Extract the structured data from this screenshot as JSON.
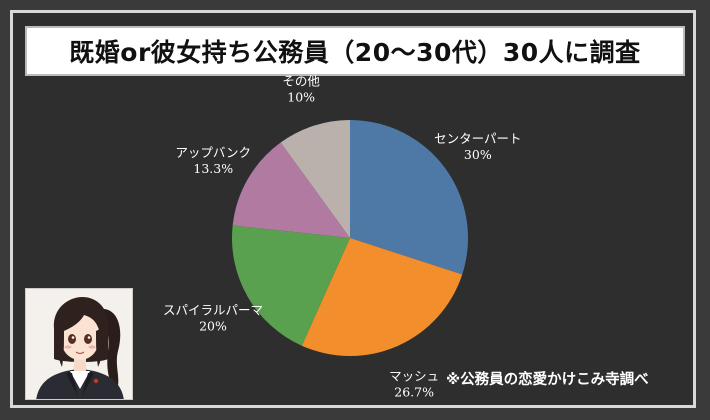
{
  "title": "既婚or彼女持ち公務員（20～30代）30人に調査",
  "note": "※公務員の恋愛かけこみ寺調べ",
  "chart_data": {
    "type": "pie",
    "start_angle_deg": 0,
    "direction": "clockwise",
    "slices": [
      {
        "label": "センターパート",
        "value": 30,
        "value_label": "30%",
        "color": "#4e79a7"
      },
      {
        "label": "マッシュ",
        "value": 26.7,
        "value_label": "26.7%",
        "color": "#f28e2b"
      },
      {
        "label": "スパイラルパーマ",
        "value": 20,
        "value_label": "20%",
        "color": "#59a14f"
      },
      {
        "label": "アップバンク",
        "value": 13.3,
        "value_label": "13.3%",
        "color": "#b07aa1"
      },
      {
        "label": "その他",
        "value": 10,
        "value_label": "10%",
        "color": "#bab0ac"
      }
    ]
  },
  "colors": {
    "background": "#3a3a3a",
    "title_bg": "#ffffff",
    "label_text": "#ffffff"
  },
  "avatar": {
    "icon": "anime-woman-illustration"
  }
}
